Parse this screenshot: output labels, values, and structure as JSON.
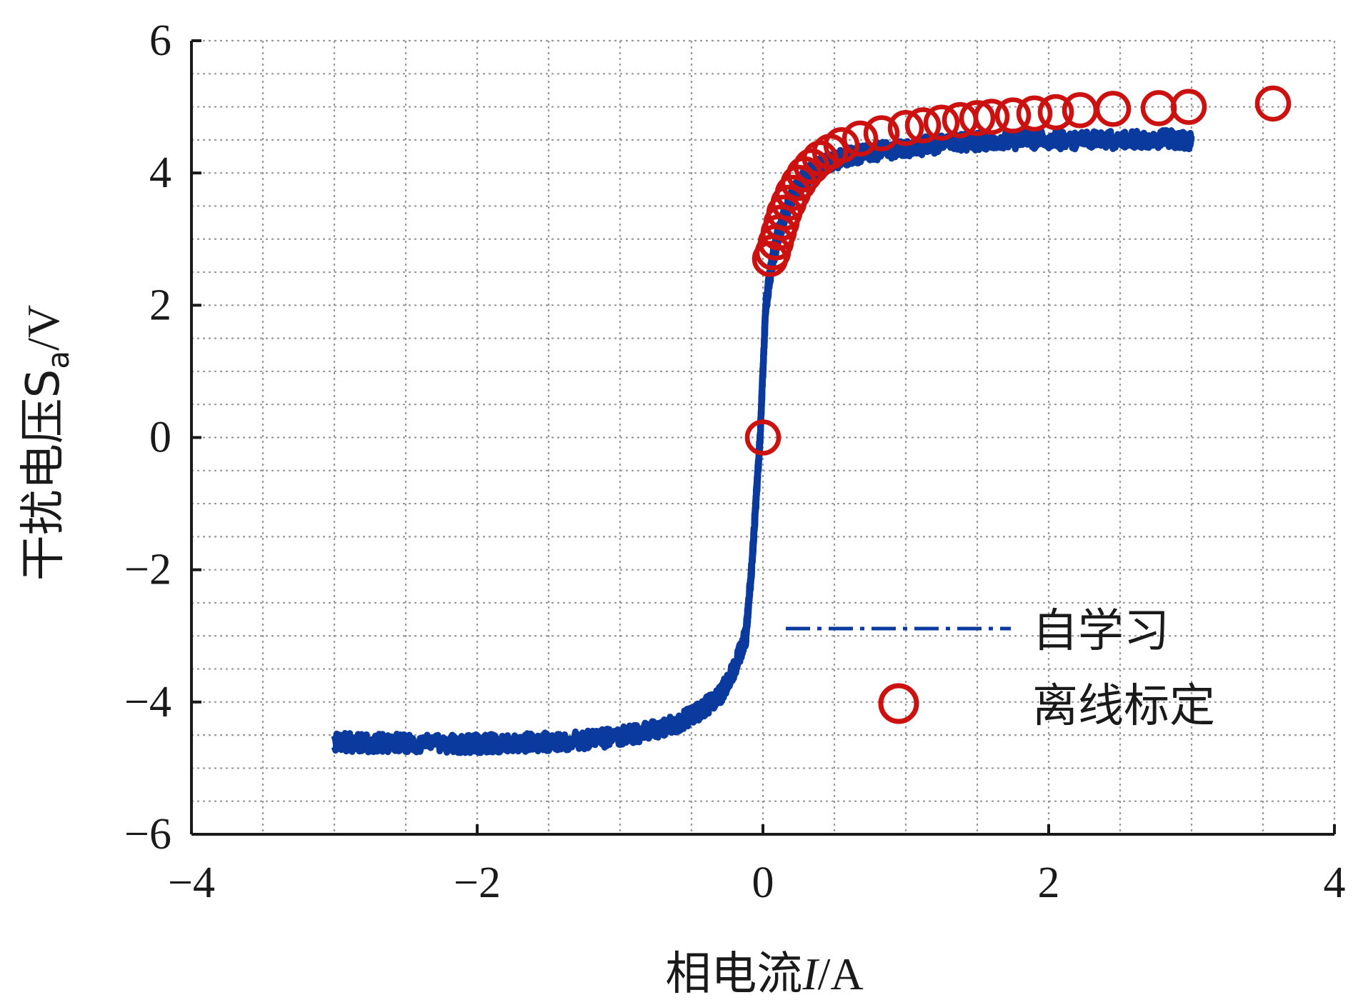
{
  "chart_data": {
    "type": "scatter",
    "title": "",
    "xlabel_parts": [
      "相电流",
      "I",
      "/A"
    ],
    "ylabel_parts": [
      "干扰电压S",
      "a",
      "/V"
    ],
    "xlim": [
      -4,
      4
    ],
    "ylim": [
      -6,
      6
    ],
    "xticks": [
      -4,
      -2,
      0,
      2,
      4
    ],
    "xtick_labels": [
      "−4",
      "−2",
      "0",
      "2",
      "4"
    ],
    "yticks": [
      -6,
      -4,
      -2,
      0,
      2,
      4,
      6
    ],
    "ytick_labels": [
      "−6",
      "−4",
      "−2",
      "0",
      "2",
      "4",
      "6"
    ],
    "grid": true,
    "grid_style": "dotted",
    "legend_position": "lower-right",
    "colors": {
      "self_learning": "#0a3a9e",
      "offline": "#cc1111",
      "grid": "#9a9a9a",
      "axis": "#1a1a1a"
    },
    "series": [
      {
        "name": "自学习",
        "kind": "line",
        "legend_style": "dash-dot",
        "points": [
          [
            -3.0,
            -4.6
          ],
          [
            -2.8,
            -4.62
          ],
          [
            -2.5,
            -4.62
          ],
          [
            -2.2,
            -4.63
          ],
          [
            -2.0,
            -4.63
          ],
          [
            -1.8,
            -4.62
          ],
          [
            -1.5,
            -4.6
          ],
          [
            -1.2,
            -4.57
          ],
          [
            -1.0,
            -4.52
          ],
          [
            -0.8,
            -4.44
          ],
          [
            -0.6,
            -4.32
          ],
          [
            -0.45,
            -4.15
          ],
          [
            -0.3,
            -3.9
          ],
          [
            -0.2,
            -3.5
          ],
          [
            -0.12,
            -3.0
          ],
          [
            -0.08,
            -2.0
          ],
          [
            -0.05,
            -1.0
          ],
          [
            -0.02,
            0.0
          ],
          [
            0.0,
            1.0
          ],
          [
            0.02,
            2.0
          ],
          [
            0.06,
            2.6
          ],
          [
            0.1,
            3.0
          ],
          [
            0.15,
            3.35
          ],
          [
            0.2,
            3.65
          ],
          [
            0.3,
            3.95
          ],
          [
            0.4,
            4.1
          ],
          [
            0.5,
            4.2
          ],
          [
            0.7,
            4.3
          ],
          [
            1.0,
            4.38
          ],
          [
            1.3,
            4.45
          ],
          [
            1.6,
            4.5
          ],
          [
            2.0,
            4.5
          ],
          [
            2.4,
            4.5
          ],
          [
            2.8,
            4.52
          ],
          [
            3.0,
            4.5
          ]
        ]
      },
      {
        "name": "离线标定",
        "kind": "marker",
        "marker": "open-circle",
        "points": [
          [
            0.0,
            0.0
          ],
          [
            0.05,
            2.7
          ],
          [
            0.07,
            2.8
          ],
          [
            0.09,
            2.95
          ],
          [
            0.11,
            3.1
          ],
          [
            0.13,
            3.25
          ],
          [
            0.15,
            3.4
          ],
          [
            0.18,
            3.55
          ],
          [
            0.21,
            3.7
          ],
          [
            0.25,
            3.85
          ],
          [
            0.29,
            3.98
          ],
          [
            0.34,
            4.1
          ],
          [
            0.4,
            4.22
          ],
          [
            0.47,
            4.32
          ],
          [
            0.55,
            4.42
          ],
          [
            0.68,
            4.52
          ],
          [
            0.83,
            4.6
          ],
          [
            1.0,
            4.68
          ],
          [
            1.12,
            4.72
          ],
          [
            1.25,
            4.76
          ],
          [
            1.38,
            4.8
          ],
          [
            1.5,
            4.83
          ],
          [
            1.6,
            4.85
          ],
          [
            1.75,
            4.87
          ],
          [
            1.9,
            4.9
          ],
          [
            2.05,
            4.92
          ],
          [
            2.22,
            4.95
          ],
          [
            2.45,
            4.97
          ],
          [
            2.77,
            4.98
          ],
          [
            2.98,
            5.0
          ],
          [
            3.57,
            5.05
          ]
        ]
      }
    ]
  }
}
